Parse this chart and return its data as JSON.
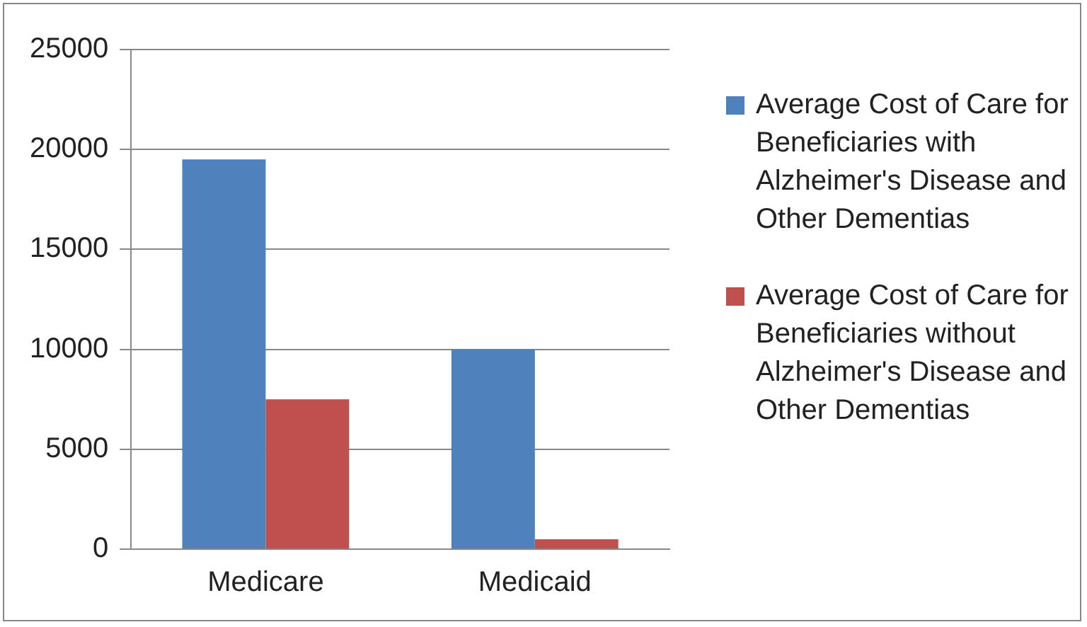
{
  "chart_data": {
    "type": "bar",
    "categories": [
      "Medicare",
      "Medicaid"
    ],
    "series": [
      {
        "name": "Average Cost of Care for Beneficiaries with Alzheimer's Disease and Other Dementias",
        "color": "#4f81bd",
        "values": [
          19500,
          10000
        ]
      },
      {
        "name": "Average Cost of Care for Beneficiaries without Alzheimer's Disease and Other Dementias",
        "color": "#c0504d",
        "values": [
          7500,
          500
        ]
      }
    ],
    "ylim": [
      0,
      25000
    ],
    "yticks": [
      0,
      5000,
      10000,
      15000,
      20000,
      25000
    ],
    "grid": "y",
    "legend": "right"
  }
}
